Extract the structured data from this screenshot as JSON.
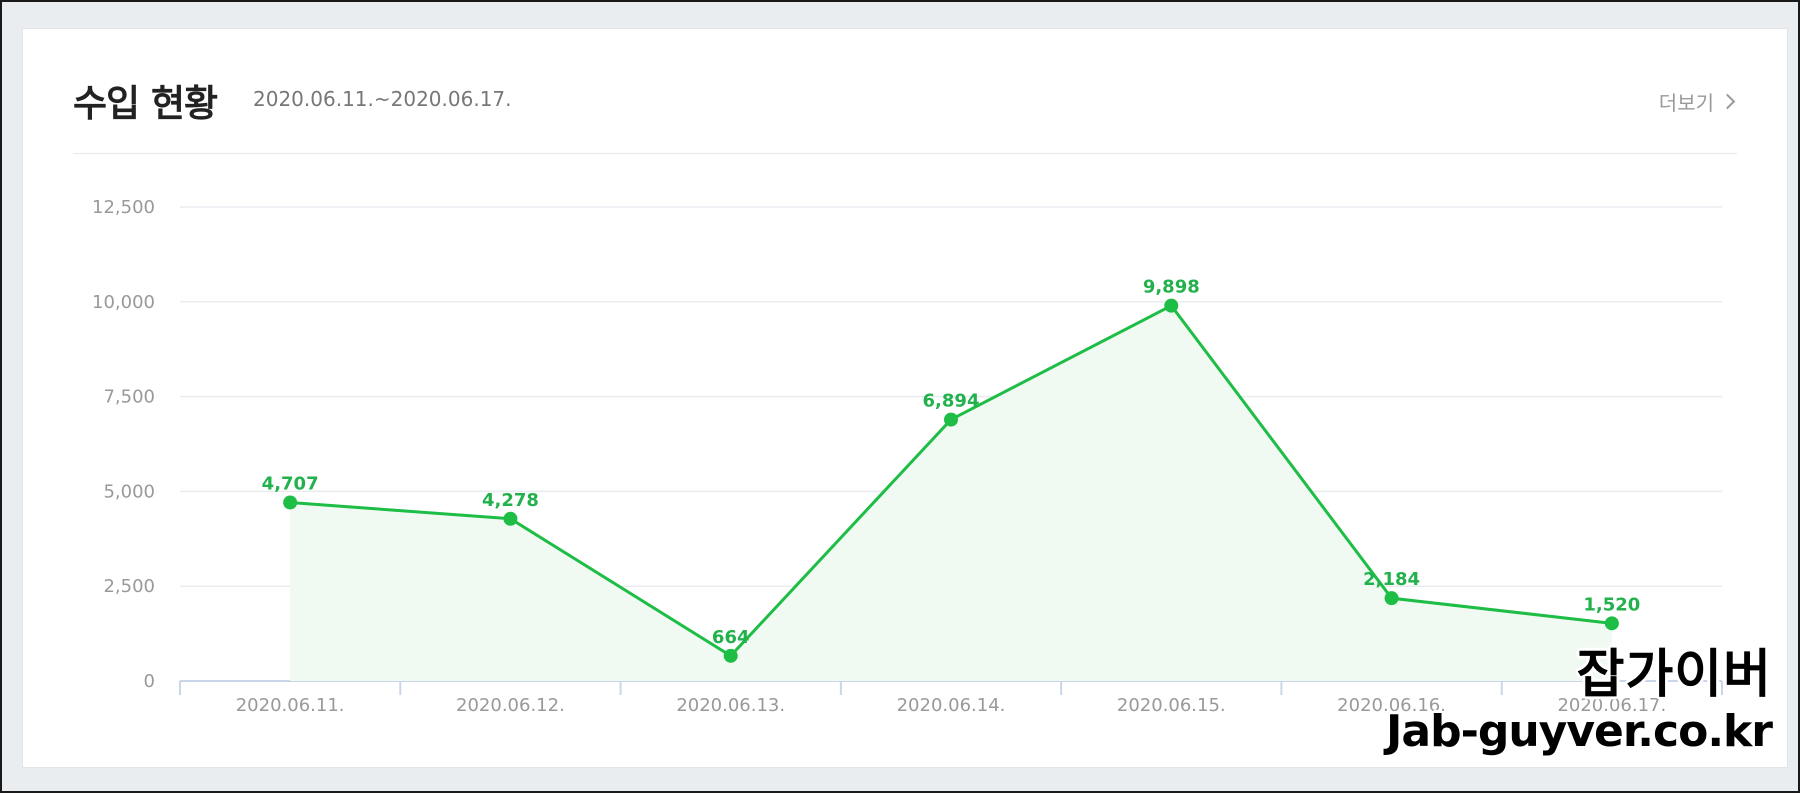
{
  "header": {
    "title": "수입 현황",
    "period": "2020.06.11.~2020.06.17.",
    "more_label": "더보기"
  },
  "watermark": {
    "korean": "잡가이버",
    "url": "Jab-guyver.co.kr"
  },
  "colors": {
    "line": "#1ebd45",
    "fill": "#f1faf2",
    "grid": "#e8ecef",
    "axis": "#c9d6ea",
    "tick_text": "#999999",
    "label_text": "#22b14c"
  },
  "chart_data": {
    "type": "area",
    "categories": [
      "2020.06.11.",
      "2020.06.12.",
      "2020.06.13.",
      "2020.06.14.",
      "2020.06.15.",
      "2020.06.16.",
      "2020.06.17."
    ],
    "series": [
      {
        "values": [
          4707,
          4278,
          664,
          6894,
          9898,
          2184,
          1520
        ],
        "value_labels": [
          "4,707",
          "4,278",
          "664",
          "6,894",
          "9,898",
          "2,184",
          "1,520"
        ]
      }
    ],
    "yticks": [
      0,
      2500,
      5000,
      7500,
      10000,
      12500
    ],
    "ytick_labels": [
      "0",
      "2,500",
      "5,000",
      "7,500",
      "10,000",
      "12,500"
    ],
    "ylim": [
      0,
      12500
    ],
    "grid": true,
    "legend": false
  }
}
